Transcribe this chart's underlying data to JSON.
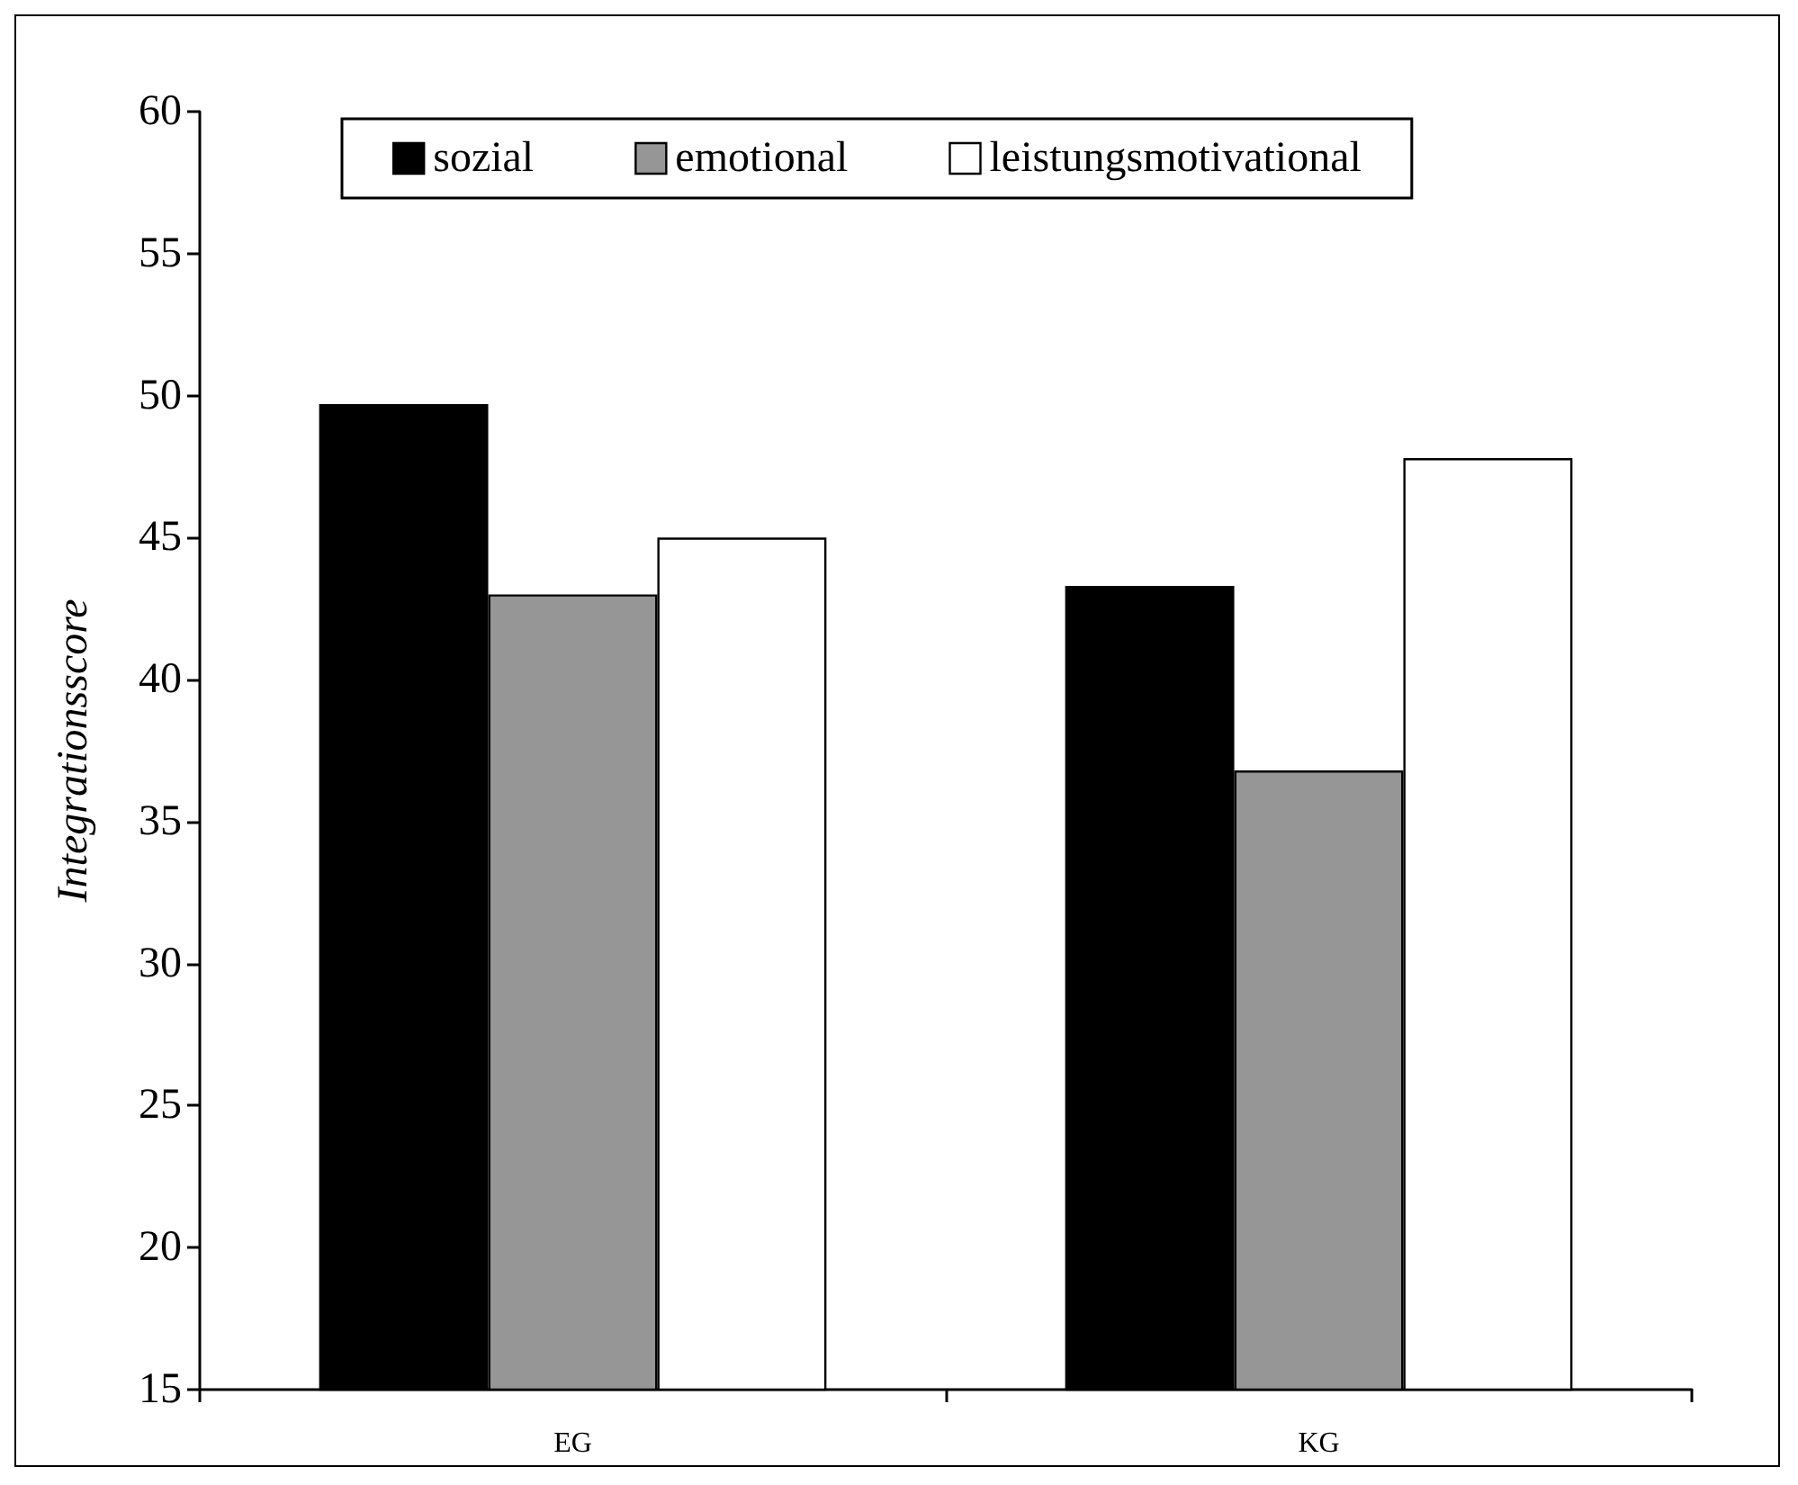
{
  "chart_data": {
    "type": "bar",
    "categories": [
      "EG",
      "KG"
    ],
    "series": [
      {
        "name": "sozial",
        "color": "#000000",
        "values": [
          49.7,
          43.3
        ]
      },
      {
        "name": "emotional",
        "color": "#969696",
        "values": [
          43.0,
          36.8
        ]
      },
      {
        "name": "leistungsmotivational",
        "color": "#ffffff",
        "values": [
          45.0,
          47.8
        ]
      }
    ],
    "ylabel": "Integrationsscore",
    "ylim": [
      15,
      60
    ],
    "yticks": [
      15,
      20,
      25,
      30,
      35,
      40,
      45,
      50,
      55,
      60
    ],
    "grid": false,
    "legend": "top"
  }
}
